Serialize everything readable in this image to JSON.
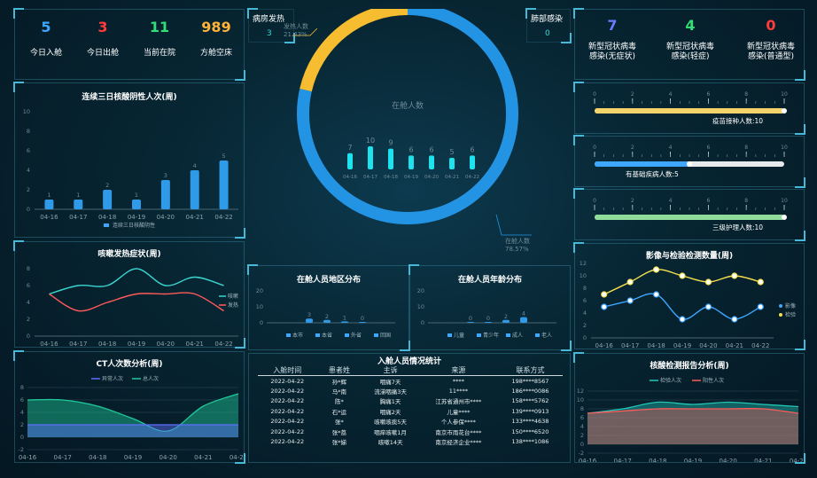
{
  "top_stats": [
    {
      "value": "5",
      "label": "今日入舱",
      "color": "#3ea7ff"
    },
    {
      "value": "3",
      "label": "今日出舱",
      "color": "#ff3b3b"
    },
    {
      "value": "11",
      "label": "当前在院",
      "color": "#33dd77"
    },
    {
      "value": "989",
      "label": "方舱空床",
      "color": "#ffb23a"
    }
  ],
  "right_stats": [
    {
      "value": "7",
      "label1": "新型冠状病毒",
      "label2": "感染(无症状)",
      "color": "#6a7cff"
    },
    {
      "value": "4",
      "label1": "新型冠状病毒",
      "label2": "感染(轻症)",
      "color": "#33dd77"
    },
    {
      "value": "0",
      "label1": "新型冠状病毒",
      "label2": "感染(普通型)",
      "color": "#ff3b3b"
    }
  ],
  "fever": {
    "title": "病房发热",
    "value": "3"
  },
  "lung": {
    "title": "肺部感染",
    "value": "0"
  },
  "donut": {
    "center_label": "在舱人数",
    "fever_label": "发热人数",
    "fever_pct": "21.43%",
    "main_label": "在舱人数",
    "main_pct": "78.57%",
    "fever_fraction": 0.2143
  },
  "center_bars": {
    "categories": [
      "04-16",
      "04-17",
      "04-18",
      "04-19",
      "04-20",
      "04-21",
      "04-22"
    ],
    "values": [
      7,
      10,
      9,
      6,
      6,
      5,
      6
    ]
  },
  "nucleic": {
    "title": "连续三日核酸阴性人次(周)",
    "categories": [
      "04-16",
      "04-17",
      "04-18",
      "04-19",
      "04-20",
      "04-21",
      "04-22"
    ],
    "values": [
      1,
      1,
      2,
      1,
      3,
      4,
      5
    ],
    "legend": "连续三日核酸阴性",
    "yticks": [
      "0",
      "2",
      "4",
      "6",
      "8",
      "10"
    ]
  },
  "cough": {
    "title": "咳嗽发热症状(周)",
    "categories": [
      "04-16",
      "04-17",
      "04-18",
      "04-19",
      "04-20",
      "04-21",
      "04-22"
    ],
    "series": [
      {
        "name": "咳嗽",
        "values": [
          5,
          6,
          6,
          8,
          6,
          7,
          6
        ],
        "color": "#39d6d0"
      },
      {
        "name": "发热",
        "values": [
          5,
          3,
          4,
          5,
          5,
          5,
          3
        ],
        "color": "#ff5a5a"
      }
    ],
    "yticks": [
      "0",
      "2",
      "4",
      "6",
      "8"
    ]
  },
  "ct": {
    "title": "CT人次数分析(周)",
    "categories": [
      "04-16",
      "04-17",
      "04-18",
      "04-19",
      "04-20",
      "04-21",
      "04-22"
    ],
    "legend": [
      "异常人次",
      "总人次"
    ],
    "series": [
      {
        "name": "异常人次",
        "values": [
          2,
          2,
          2,
          2,
          2,
          2,
          2
        ],
        "color": "#5f6fff"
      },
      {
        "name": "总人次",
        "values": [
          6,
          6,
          5,
          3,
          1,
          5,
          7
        ],
        "color": "#20c99a"
      }
    ],
    "yticks": [
      "-2",
      "0",
      "2",
      "4",
      "6",
      "8"
    ]
  },
  "region": {
    "title": "在舱人员地区分布",
    "categories": [
      "本市",
      "本省",
      "外省",
      "回国"
    ],
    "values": [
      3,
      2,
      1,
      0
    ],
    "yticks": [
      "0",
      "10",
      "20"
    ]
  },
  "age": {
    "title": "在舱人员年龄分布",
    "categories": [
      "儿童",
      "青少年",
      "成人",
      "老人"
    ],
    "values": [
      0,
      0,
      2,
      4
    ],
    "yticks": [
      "0",
      "10",
      "20"
    ]
  },
  "sliders": [
    {
      "label": "疫苗接种人数:10",
      "value": 10,
      "color": "#f4d36a"
    },
    {
      "label": "有基础疾病人数:5",
      "value": 5,
      "color": "#3ea7ff"
    },
    {
      "label": "三级护理人数:10",
      "value": 10,
      "color": "#8fdc9a"
    }
  ],
  "slider_ticks": [
    "0",
    "2",
    "4",
    "6",
    "8",
    "10"
  ],
  "imaging": {
    "title": "影像与检验检测数量(周)",
    "categories": [
      "04-16",
      "04-17",
      "04-18",
      "04-19",
      "04-20",
      "04-21",
      "04-22"
    ],
    "series": [
      {
        "name": "影像",
        "values": [
          5,
          6,
          7,
          3,
          5,
          3,
          5
        ],
        "color": "#3ea7ff"
      },
      {
        "name": "检验",
        "values": [
          7,
          9,
          11,
          10,
          9,
          10,
          9
        ],
        "color": "#f4e04d"
      }
    ],
    "yticks": [
      "0",
      "2",
      "4",
      "6",
      "8",
      "10",
      "12"
    ]
  },
  "report": {
    "title": "核酸检测报告分析(周)",
    "categories": [
      "04-16",
      "04-17",
      "04-18",
      "04-19",
      "04-20",
      "04-21",
      "04-22"
    ],
    "legend": [
      "检验人次",
      "阳性人次"
    ],
    "series": [
      {
        "name": "检验人次",
        "values": [
          7,
          8,
          9.5,
          9,
          9.5,
          9,
          8.5
        ],
        "color": "#22c7b8"
      },
      {
        "name": "阳性人次",
        "values": [
          7,
          7.5,
          8,
          8,
          8,
          8,
          7
        ],
        "color": "#ff5a5a"
      }
    ],
    "yticks": [
      "-2",
      "0",
      "2",
      "4",
      "6",
      "8",
      "10",
      "12"
    ]
  },
  "table": {
    "title": "入舱人员情况统计",
    "headers": [
      "入舱时间",
      "患者姓",
      "主诉",
      "来源",
      "联系方式"
    ],
    "rows": [
      [
        "2022-04-22",
        "孙*辉",
        "咽痛7天",
        "****",
        "198****8567"
      ],
      [
        "2022-04-22",
        "马*南",
        "流涕咽痛3天",
        "11****",
        "186****0086"
      ],
      [
        "2022-04-22",
        "陈*",
        "胸痛1天",
        "江苏省通州市****",
        "158****5762"
      ],
      [
        "2022-04-22",
        "石*运",
        "咽痛2天",
        "儿童****",
        "139****0913"
      ],
      [
        "2022-04-22",
        "张*",
        "咳嗽咳痰5天",
        "个人参保****",
        "133****4638"
      ],
      [
        "2022-04-22",
        "张*荔",
        "咽痒咳嗽1月",
        "南京市雨花台****",
        "150****6520"
      ],
      [
        "2022-04-22",
        "张*娣",
        "咳嗽14天",
        "南京经济企业****",
        "138****1086"
      ]
    ]
  }
}
